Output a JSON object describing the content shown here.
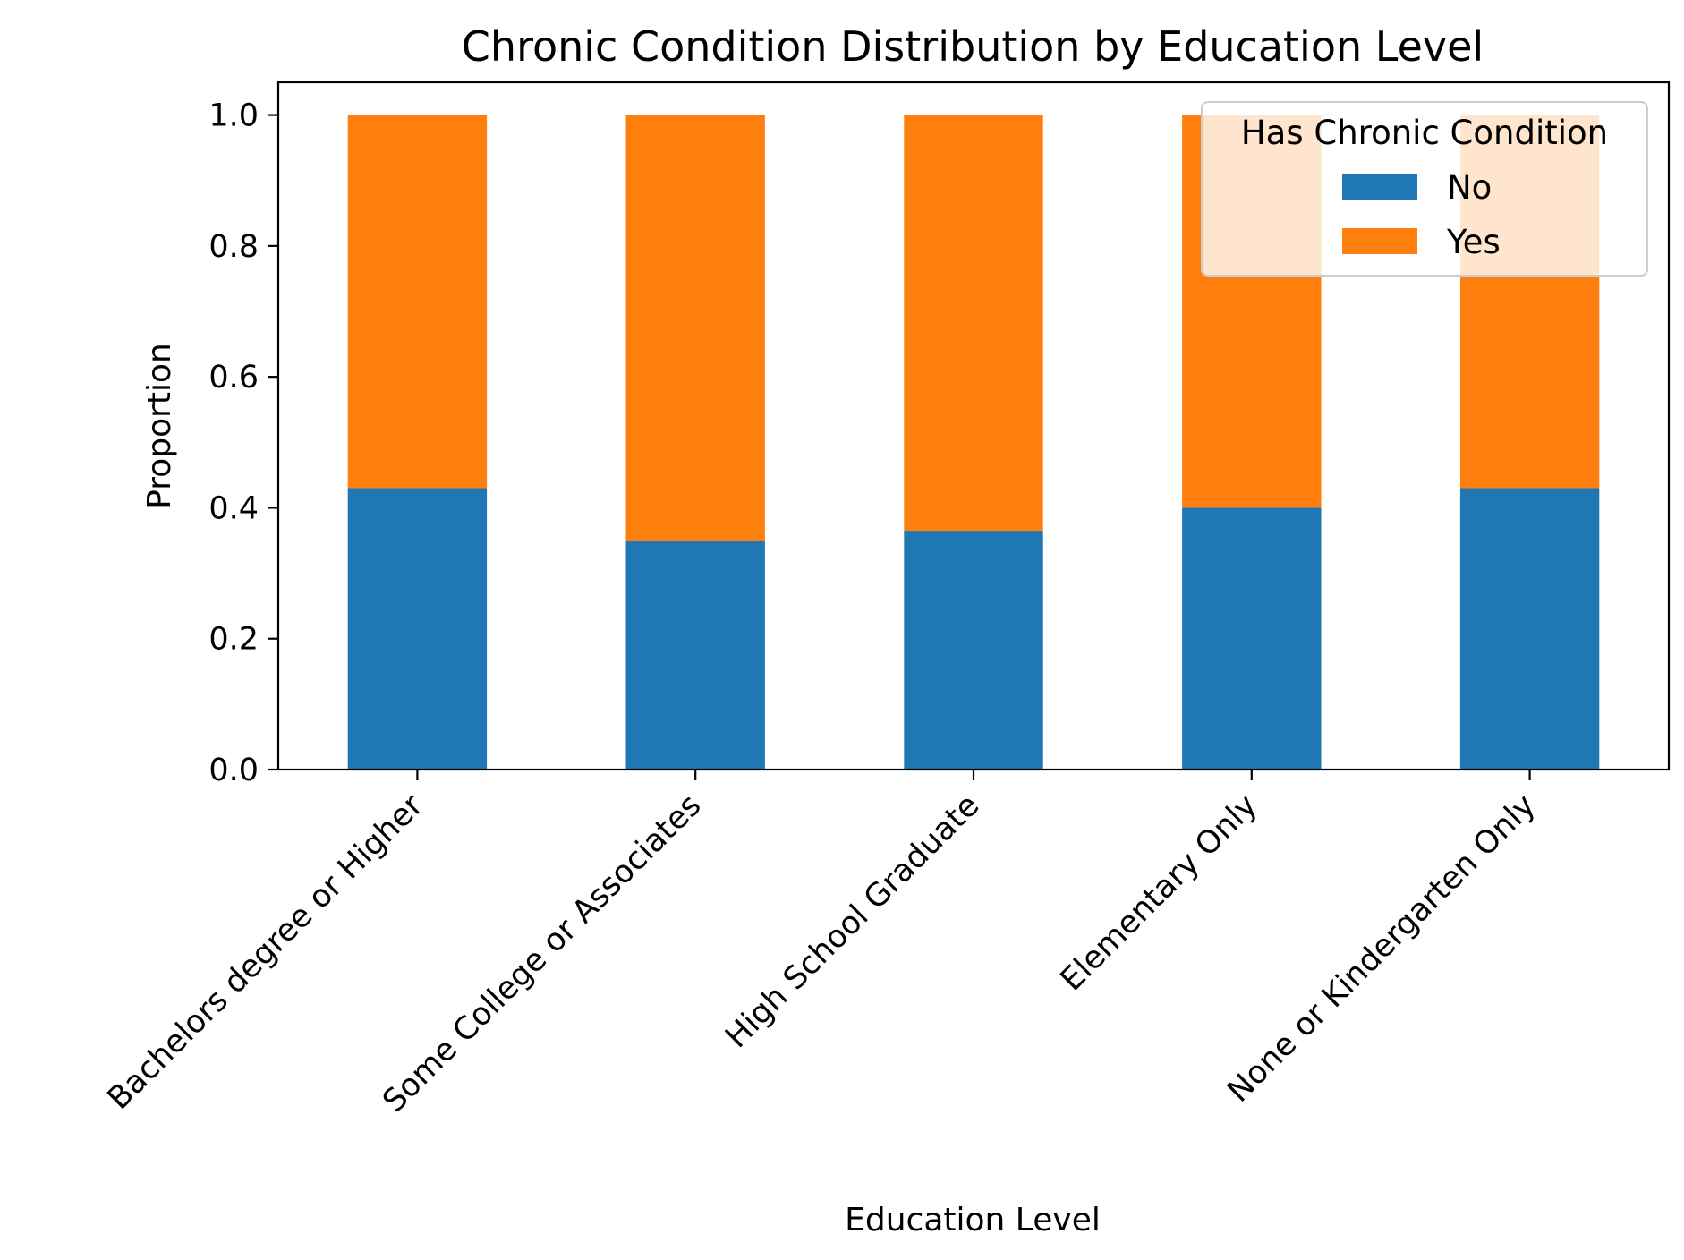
{
  "chart_data": {
    "type": "bar",
    "stacked": true,
    "title": "Chronic Condition Distribution by Education Level",
    "xlabel": "Education Level",
    "ylabel": "Proportion",
    "categories": [
      "Bachelors degree or Higher",
      "Some College or Associates",
      "High School Graduate",
      "Elementary Only",
      "None or Kindergarten Only"
    ],
    "series": [
      {
        "name": "No",
        "color": "#1f77b4",
        "values": [
          0.43,
          0.35,
          0.365,
          0.4,
          0.43
        ]
      },
      {
        "name": "Yes",
        "color": "#ff7f0e",
        "values": [
          0.57,
          0.65,
          0.635,
          0.6,
          0.57
        ]
      }
    ],
    "ylim": [
      0,
      1.05
    ],
    "yticks": [
      "0.0",
      "0.2",
      "0.4",
      "0.6",
      "0.8",
      "1.0"
    ],
    "ytick_values": [
      0,
      0.2,
      0.4,
      0.6,
      0.8,
      1.0
    ],
    "grid": false,
    "legend": {
      "title": "Has Chronic Condition",
      "placement": "top-right"
    }
  }
}
